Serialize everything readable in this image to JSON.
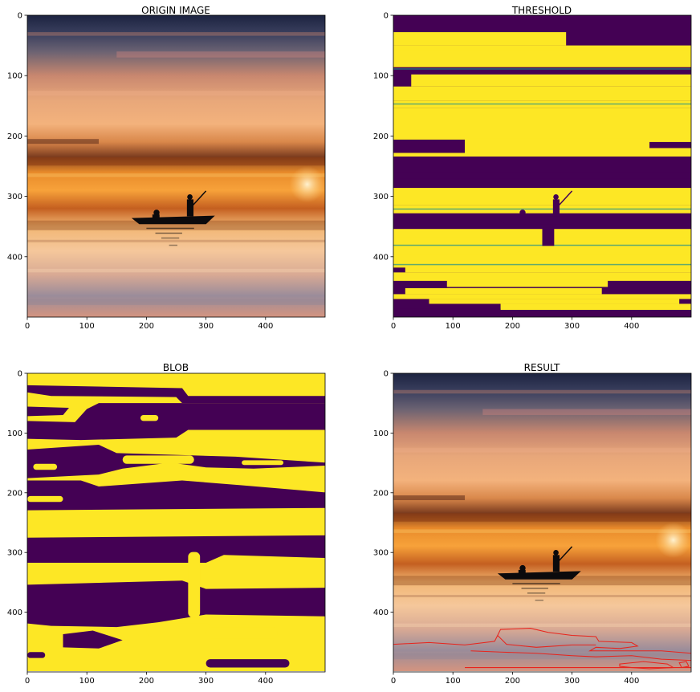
{
  "figure": {
    "panels": [
      {
        "id": "origin",
        "title": "ORIGIN IMAGE",
        "kind": "photo",
        "x_ticks": [
          "0",
          "100",
          "200",
          "300",
          "400"
        ],
        "y_ticks": [
          "0",
          "100",
          "200",
          "300",
          "400"
        ]
      },
      {
        "id": "threshold",
        "title": "THRESHOLD",
        "kind": "threshold",
        "x_ticks": [
          "0",
          "100",
          "200",
          "300",
          "400"
        ],
        "y_ticks": [
          "0",
          "100",
          "200",
          "300",
          "400"
        ]
      },
      {
        "id": "blob",
        "title": "BLOB",
        "kind": "blob",
        "x_ticks": [
          "0",
          "100",
          "200",
          "300",
          "400"
        ],
        "y_ticks": [
          "0",
          "100",
          "200",
          "300",
          "400"
        ]
      },
      {
        "id": "result",
        "title": "RESULT",
        "kind": "photo-contours",
        "x_ticks": [
          "0",
          "100",
          "200",
          "300",
          "400"
        ],
        "y_ticks": [
          "0",
          "100",
          "200",
          "300",
          "400"
        ]
      }
    ],
    "colors": {
      "viridis_low": "#440154",
      "viridis_high": "#fde725",
      "viridis_edge": "#21918c",
      "contour": "#e8241c",
      "silhouette": "#0b0a0c"
    },
    "image_size": [
      500,
      500
    ]
  }
}
